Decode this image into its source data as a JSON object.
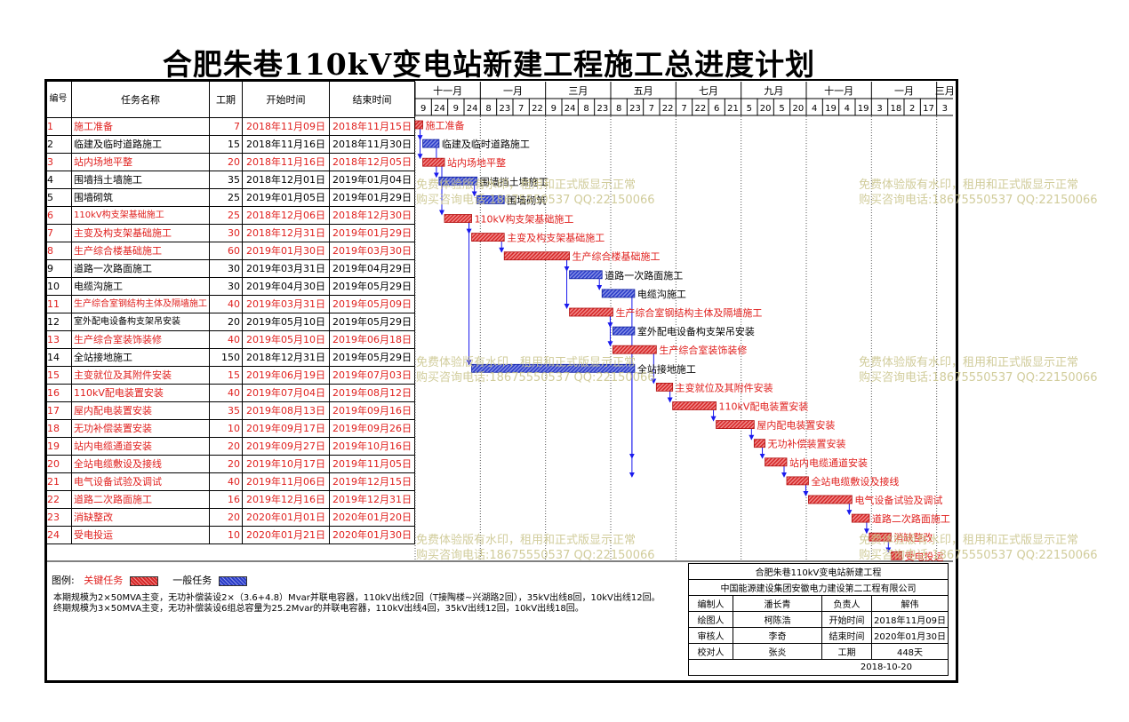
{
  "title": "合肥朱巷110kV变电站新建工程施工总进度计划",
  "headers": {
    "num": "编号",
    "name": "任务名称",
    "dur": "工期",
    "start": "开始时间",
    "end": "结束时间"
  },
  "month_labels": [
    "十一月",
    "一月",
    "三月",
    "五月",
    "七月",
    "九月",
    "十一月",
    "一月",
    "三月"
  ],
  "week_ticks": [
    "9",
    "24",
    "9",
    "24",
    "8",
    "23",
    "7",
    "22",
    "9",
    "24",
    "8",
    "23",
    "8",
    "23",
    "7",
    "22",
    "7",
    "22",
    "6",
    "21",
    "5",
    "20",
    "5",
    "20",
    "4",
    "19",
    "4",
    "19",
    "3",
    "18",
    "2",
    "17",
    "3"
  ],
  "colors": {
    "critical": "#e0201e",
    "normal": "#2233cc",
    "link": "#1a1aee"
  },
  "tasks": [
    {
      "id": "1",
      "name": "施工准备",
      "dur": "7",
      "start": "2018年11月09日",
      "end": "2018年11月15日",
      "critical": true,
      "s": "2018-11-09",
      "e": "2018-11-15"
    },
    {
      "id": "2",
      "name": "临建及临时道路施工",
      "dur": "15",
      "start": "2018年11月16日",
      "end": "2018年11月30日",
      "critical": false,
      "s": "2018-11-16",
      "e": "2018-11-30"
    },
    {
      "id": "3",
      "name": "站内场地平整",
      "dur": "20",
      "start": "2018年11月16日",
      "end": "2018年12月05日",
      "critical": true,
      "s": "2018-11-16",
      "e": "2018-12-05"
    },
    {
      "id": "4",
      "name": "围墙挡土墙施工",
      "dur": "35",
      "start": "2018年12月01日",
      "end": "2019年01月04日",
      "critical": false,
      "s": "2018-12-01",
      "e": "2019-01-04"
    },
    {
      "id": "5",
      "name": "围墙砌筑",
      "dur": "25",
      "start": "2019年01月05日",
      "end": "2019年01月29日",
      "critical": false,
      "s": "2019-01-05",
      "e": "2019-01-29"
    },
    {
      "id": "6",
      "name": "110kV构支架基础施工",
      "dur": "25",
      "start": "2018年12月06日",
      "end": "2018年12月30日",
      "critical": true,
      "s": "2018-12-06",
      "e": "2018-12-30"
    },
    {
      "id": "7",
      "name": "主变及构支架基础施工",
      "dur": "30",
      "start": "2018年12月31日",
      "end": "2019年01月29日",
      "critical": true,
      "s": "2018-12-31",
      "e": "2019-01-29"
    },
    {
      "id": "8",
      "name": "生产综合楼基础施工",
      "dur": "60",
      "start": "2019年01月30日",
      "end": "2019年03月30日",
      "critical": true,
      "s": "2019-01-30",
      "e": "2019-03-30"
    },
    {
      "id": "9",
      "name": "道路一次路面施工",
      "dur": "30",
      "start": "2019年03月31日",
      "end": "2019年04月29日",
      "critical": false,
      "s": "2019-03-31",
      "e": "2019-04-29"
    },
    {
      "id": "10",
      "name": "电缆沟施工",
      "dur": "30",
      "start": "2019年04月30日",
      "end": "2019年05月29日",
      "critical": false,
      "s": "2019-04-30",
      "e": "2019-05-29"
    },
    {
      "id": "11",
      "name": "生产综合室钢结构主体及隔墙施工",
      "dur": "40",
      "start": "2019年03月31日",
      "end": "2019年05月09日",
      "critical": true,
      "s": "2019-03-31",
      "e": "2019-05-09"
    },
    {
      "id": "12",
      "name": "室外配电设备构支架吊安装",
      "dur": "20",
      "start": "2019年05月10日",
      "end": "2019年05月29日",
      "critical": false,
      "s": "2019-05-10",
      "e": "2019-05-29"
    },
    {
      "id": "13",
      "name": "生产综合室装饰装修",
      "dur": "40",
      "start": "2019年05月10日",
      "end": "2019年06月18日",
      "critical": true,
      "s": "2019-05-10",
      "e": "2019-06-18"
    },
    {
      "id": "14",
      "name": "全站接地施工",
      "dur": "150",
      "start": "2018年12月31日",
      "end": "2019年05月29日",
      "critical": false,
      "s": "2018-12-31",
      "e": "2019-05-29"
    },
    {
      "id": "15",
      "name": "主变就位及其附件安装",
      "dur": "15",
      "start": "2019年06月19日",
      "end": "2019年07月03日",
      "critical": true,
      "s": "2019-06-19",
      "e": "2019-07-03"
    },
    {
      "id": "16",
      "name": "110kV配电装置安装",
      "dur": "40",
      "start": "2019年07月04日",
      "end": "2019年08月12日",
      "critical": true,
      "s": "2019-07-04",
      "e": "2019-08-12"
    },
    {
      "id": "17",
      "name": "屋内配电装置安装",
      "dur": "35",
      "start": "2019年08月13日",
      "end": "2019年09月16日",
      "critical": true,
      "s": "2019-08-13",
      "e": "2019-09-16"
    },
    {
      "id": "18",
      "name": "无功补偿装置安装",
      "dur": "10",
      "start": "2019年09月17日",
      "end": "2019年09月26日",
      "critical": true,
      "s": "2019-09-17",
      "e": "2019-09-26"
    },
    {
      "id": "19",
      "name": "站内电缆通道安装",
      "dur": "20",
      "start": "2019年09月27日",
      "end": "2019年10月16日",
      "critical": true,
      "s": "2019-09-27",
      "e": "2019-10-16"
    },
    {
      "id": "20",
      "name": "全站电缆敷设及接线",
      "dur": "20",
      "start": "2019年10月17日",
      "end": "2019年11月05日",
      "critical": true,
      "s": "2019-10-17",
      "e": "2019-11-05"
    },
    {
      "id": "21",
      "name": "电气设备试验及调试",
      "dur": "40",
      "start": "2019年11月06日",
      "end": "2019年12月15日",
      "critical": true,
      "s": "2019-11-06",
      "e": "2019-12-15"
    },
    {
      "id": "22",
      "name": "道路二次路面施工",
      "dur": "16",
      "start": "2019年12月16日",
      "end": "2019年12月31日",
      "critical": true,
      "s": "2019-12-16",
      "e": "2019-12-31"
    },
    {
      "id": "23",
      "name": "消缺整改",
      "dur": "20",
      "start": "2020年01月01日",
      "end": "2020年01月20日",
      "critical": true,
      "s": "2020-01-01",
      "e": "2020-01-20"
    },
    {
      "id": "24",
      "name": "受电投运",
      "dur": "10",
      "start": "2020年01月21日",
      "end": "2020年01月30日",
      "critical": true,
      "s": "2020-01-21",
      "e": "2020-01-30"
    }
  ],
  "chart_data": {
    "type": "gantt",
    "title": "合肥朱巷110kV变电站新建工程施工总进度计划",
    "x_range": [
      "2018-11-09",
      "2020-03-18"
    ],
    "series": [
      {
        "name": "关键任务"
      },
      {
        "name": "一般任务"
      }
    ]
  },
  "legend": {
    "label": "图例:",
    "critical": "关键任务",
    "normal": "一般任务"
  },
  "notes": [
    "本期规模为2×50MVA主变，无功补偿装设2×（3.6+4.8）Mvar并联电容器，110kV出线2回（T接陶楼~兴湖路2回），35kV出线8回，10kV出线12回。",
    "终期规模为3×50MVA主变，无功补偿装设6组总容量为25.2Mvar的并联电容器，110kV出线4回，35kV出线12回，10kV出线18回。"
  ],
  "titleblock": {
    "project": "合肥朱巷110kV变电站新建工程",
    "company": "中国能源建设集团安徽电力建设第二工程有限公司",
    "rows": [
      [
        "编制人",
        "潘长青",
        "负责人",
        "解伟"
      ],
      [
        "绘图人",
        "柯陈浩",
        "开始时间",
        "2018年11月09日"
      ],
      [
        "审核人",
        "李奇",
        "结束时间",
        "2020年01月30日"
      ],
      [
        "校对人",
        "张炎",
        "工期",
        "448天"
      ]
    ],
    "date": "2018-10-20"
  },
  "watermark": {
    "line1": "免费体验版有水印，租用和正式版显示正常",
    "line2": "购买咨询电话:18675550537 QQ:22150066"
  }
}
